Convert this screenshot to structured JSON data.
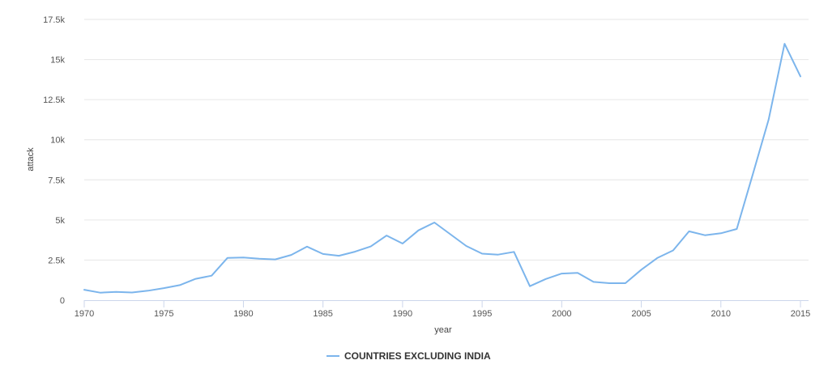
{
  "chart_data": {
    "type": "line",
    "xlabel": "year",
    "ylabel": "attack",
    "xlim": [
      1970,
      2015
    ],
    "ylim": [
      0,
      17500
    ],
    "x_ticks": [
      1970,
      1975,
      1980,
      1985,
      1990,
      1995,
      2000,
      2005,
      2010,
      2015
    ],
    "x_tick_labels": [
      "1970",
      "1975",
      "1980",
      "1985",
      "1990",
      "1995",
      "2000",
      "2005",
      "2010",
      "2015"
    ],
    "y_ticks": [
      0,
      2500,
      5000,
      7500,
      10000,
      12500,
      15000,
      17500
    ],
    "y_tick_labels": [
      "0",
      "2.5k",
      "5k",
      "7.5k",
      "10k",
      "12.5k",
      "15k",
      "17.5k"
    ],
    "grid": "horizontal",
    "legend_position": "bottom-center",
    "series": [
      {
        "name": "COUNTRIES EXCLUDING INDIA",
        "color": "#7cb5ec",
        "x": [
          1970,
          1971,
          1972,
          1973,
          1974,
          1975,
          1976,
          1977,
          1978,
          1979,
          1980,
          1981,
          1982,
          1983,
          1984,
          1985,
          1986,
          1987,
          1988,
          1989,
          1990,
          1991,
          1992,
          1994,
          1995,
          1996,
          1997,
          1998,
          1999,
          2000,
          2001,
          2002,
          2003,
          2004,
          2005,
          2006,
          2007,
          2008,
          2009,
          2010,
          2011,
          2012,
          2013,
          2014,
          2015
        ],
        "y": [
          650,
          470,
          520,
          480,
          590,
          750,
          940,
          1330,
          1530,
          2640,
          2660,
          2580,
          2540,
          2820,
          3340,
          2880,
          2770,
          3020,
          3350,
          4030,
          3530,
          4350,
          4840,
          3380,
          2900,
          2840,
          3010,
          870,
          1320,
          1660,
          1700,
          1140,
          1060,
          1060,
          1900,
          2630,
          3100,
          4290,
          4050,
          4170,
          4440,
          7830,
          11250,
          15980,
          13950
        ]
      }
    ]
  }
}
